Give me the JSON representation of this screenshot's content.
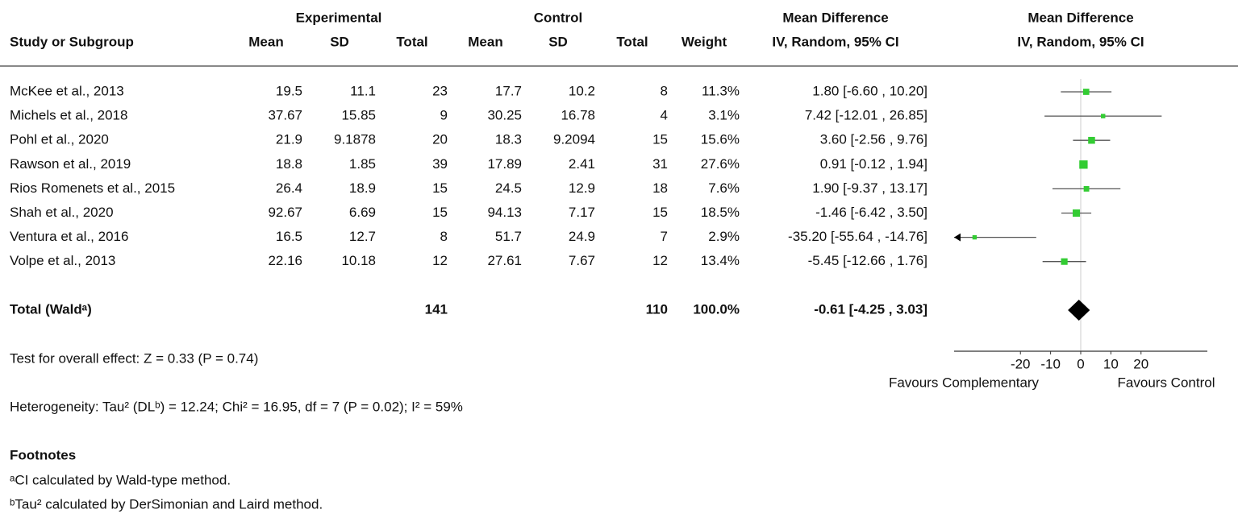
{
  "chart_data": {
    "type": "forest",
    "headers": {
      "experimental": "Experimental",
      "control": "Control",
      "md_table": "Mean Difference",
      "md_plot": "Mean Difference",
      "study": "Study or Subgroup",
      "mean_e": "Mean",
      "sd_e": "SD",
      "total_e": "Total",
      "mean_c": "Mean",
      "sd_c": "SD",
      "total_c": "Total",
      "weight": "Weight",
      "ci_table": "IV, Random, 95% CI",
      "ci_plot": "IV, Random, 95% CI"
    },
    "studies": [
      "McKee et al., 2013",
      "Michels et al., 2018",
      "Pohl et al., 2020",
      "Rawson et al., 2019",
      "Rios Romenets et al., 2015",
      "Shah et al., 2020",
      "Ventura et al., 2016",
      "Volpe et al., 2013"
    ],
    "mean_e": [
      19.5,
      37.67,
      21.9,
      18.8,
      26.4,
      92.67,
      16.5,
      22.16
    ],
    "sd_e": [
      11.1,
      15.85,
      9.1878,
      1.85,
      18.9,
      6.69,
      12.7,
      10.18
    ],
    "total_e": [
      23,
      9,
      20,
      39,
      15,
      15,
      8,
      12
    ],
    "mean_c": [
      17.7,
      30.25,
      18.3,
      17.89,
      24.5,
      94.13,
      51.7,
      27.61
    ],
    "sd_c": [
      10.2,
      16.78,
      9.2094,
      2.41,
      12.9,
      7.17,
      24.9,
      7.67
    ],
    "total_c": [
      8,
      4,
      15,
      31,
      18,
      15,
      7,
      12
    ],
    "weight": [
      11.3,
      3.1,
      15.6,
      27.6,
      7.6,
      18.5,
      2.9,
      13.4
    ],
    "weight_labels": [
      "11.3%",
      "3.1%",
      "15.6%",
      "27.6%",
      "7.6%",
      "18.5%",
      "2.9%",
      "13.4%"
    ],
    "md": [
      1.8,
      7.42,
      3.6,
      0.91,
      1.9,
      -1.46,
      -35.2,
      -5.45
    ],
    "ci_low": [
      -6.6,
      -12.01,
      -2.56,
      -0.12,
      -9.37,
      -6.42,
      -55.64,
      -12.66
    ],
    "ci_high": [
      10.2,
      26.85,
      9.76,
      1.94,
      13.17,
      3.5,
      -14.76,
      1.76
    ],
    "ci_labels": [
      "1.80 [-6.60 , 10.20]",
      "7.42 [-12.01 , 26.85]",
      "3.60 [-2.56 , 9.76]",
      "0.91 [-0.12 , 1.94]",
      "1.90 [-9.37 , 13.17]",
      "-1.46 [-6.42 , 3.50]",
      "-35.20 [-55.64 , -14.76]",
      "-5.45 [-12.66 , 1.76]"
    ],
    "total": {
      "label": "Total (Waldᵃ)",
      "total_e": 141,
      "total_c": 110,
      "weight": 100.0,
      "weight_label": "100.0%",
      "md": -0.61,
      "ci_low": -4.25,
      "ci_high": 3.03,
      "ci_label": "-0.61 [-4.25 , 3.03]"
    },
    "overall_effect": "Test for overall effect: Z = 0.33 (P = 0.74)",
    "heterogeneity": "Heterogeneity: Tau² (DLᵇ) = 12.24; Chi² = 16.95, df = 7 (P = 0.02); I² = 59%",
    "footnotes_title": "Footnotes",
    "footnotes": [
      "ᵃCI calculated by Wald-type method.",
      "ᵇTau² calculated by DerSimonian and Laird method."
    ],
    "xlim": [
      -42,
      42
    ],
    "xticks": [
      -20,
      -10,
      0,
      10,
      20
    ],
    "favours_left": "Favours Complementary",
    "favours_right": "Favours Control",
    "color": "#33cc33"
  }
}
